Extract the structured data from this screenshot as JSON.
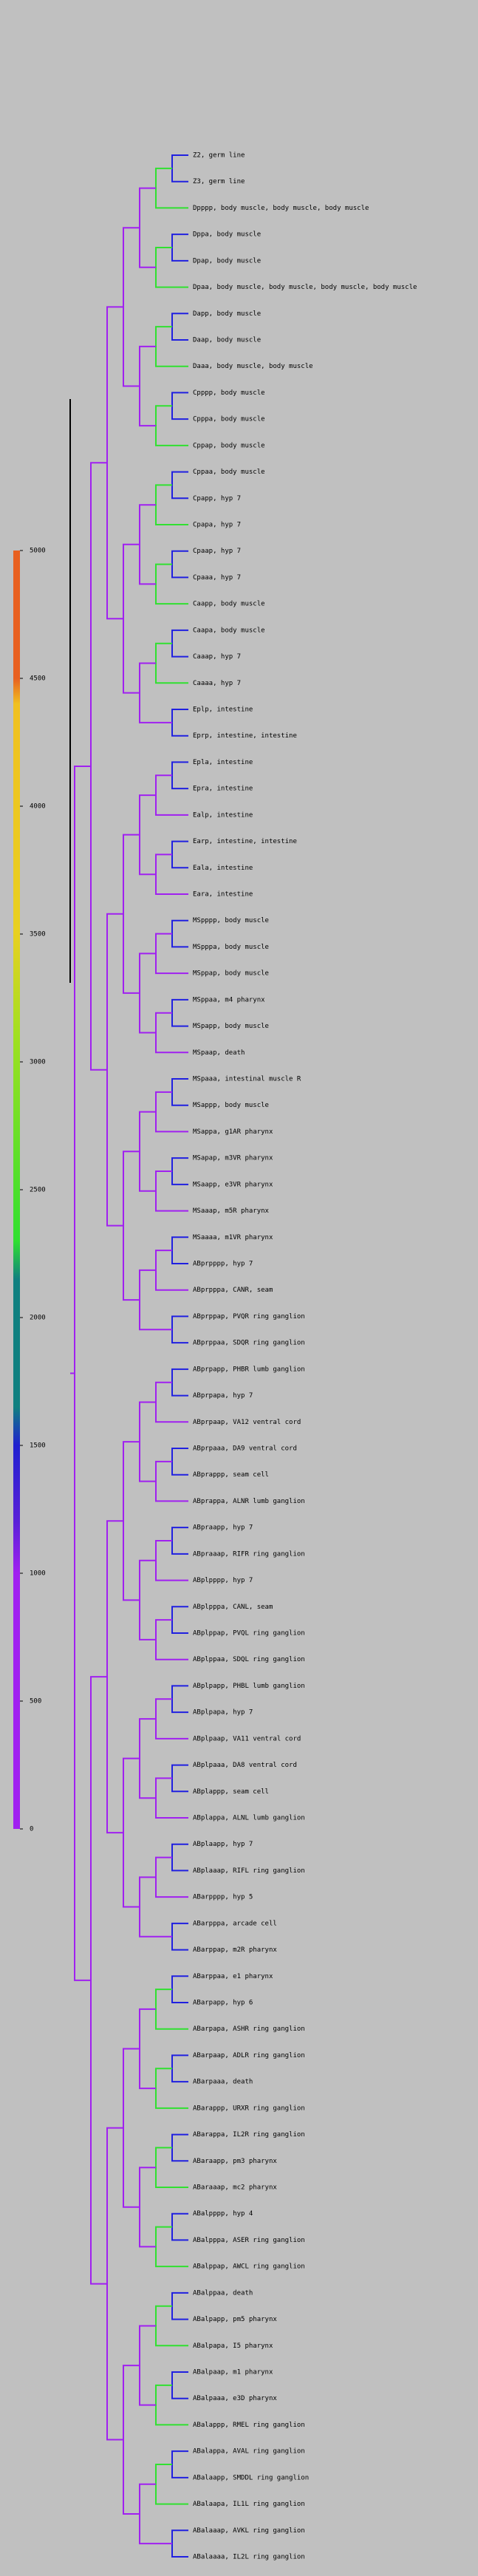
{
  "scale": {
    "ticks": [
      0,
      500,
      1000,
      1500,
      2000,
      2500,
      3000,
      3500,
      4000,
      4500,
      5000
    ]
  },
  "leaves": [
    "Z2, germ line",
    "Z3, germ line",
    "Dpppp, body muscle, body muscle, body muscle",
    "Dppa, body muscle",
    "Dpap, body muscle",
    "Dpaa, body muscle, body muscle, body muscle, body muscle",
    "Dapp, body muscle",
    "Daap, body muscle",
    "Daaa, body muscle, body muscle",
    "Cpppp, body muscle",
    "Cpppa, body muscle",
    "Cppap, body muscle",
    "Cppaa, body muscle",
    "Cpapp, hyp 7",
    "Cpapa, hyp 7",
    "Cpaap, hyp 7",
    "Cpaaa, hyp 7",
    "Caapp, body muscle",
    "Caapa, body muscle",
    "Caaap, hyp 7",
    "Caaaa, hyp 7",
    "Eplp, intestine",
    "Eprp, intestine, intestine",
    "Epla, intestine",
    "Epra, intestine",
    "Ealp, intestine",
    "Earp, intestine, intestine",
    "Eala, intestine",
    "Eara, intestine",
    "MSpppp, body muscle",
    "MSpppa, body muscle",
    "MSppap, body muscle",
    "MSppaa, m4 pharynx",
    "MSpapp, body muscle",
    "MSpaap, death",
    "MSpaaa, intestinal muscle R",
    "MSappp, body muscle",
    "MSappa, g1AR pharynx",
    "MSapap, m3VR pharynx",
    "MSaapp, e3VR pharynx",
    "MSaaap, m5R pharynx",
    "MSaaaa, m1VR pharynx",
    "ABprpppp, hyp 7",
    "ABprpppa, CANR, seam",
    "ABprppap, PVQR ring ganglion",
    "ABprppaa, SDQR ring ganglion",
    "ABprpapp, PHBR lumb ganglion",
    "ABprpapa, hyp 7",
    "ABprpaap, VA12 ventral cord",
    "ABprpaaa, DA9 ventral cord",
    "ABprappp, seam cell",
    "ABprappa, ALNR lumb ganglion",
    "ABpraapp, hyp 7",
    "ABpraaap, RIFR ring ganglion",
    "ABplpppp, hyp 7",
    "ABplpppa, CANL, seam",
    "ABplppap, PVQL ring ganglion",
    "ABplppaa, SDQL ring ganglion",
    "ABplpapp, PHBL lumb ganglion",
    "ABplpapa, hyp 7",
    "ABplpaap, VA11 ventral cord",
    "ABplpaaa, DA8 ventral cord",
    "ABplappp, seam cell",
    "ABplappa, ALNL lumb ganglion",
    "ABplaapp, hyp 7",
    "ABplaaap, RIFL ring ganglion",
    "ABarpppp, hyp 5",
    "ABarpppa, arcade cell",
    "ABarppap, m2R pharynx",
    "ABarppaa, e1 pharynx",
    "ABarpapp, hyp 6",
    "ABarpapa, ASHR ring ganglion",
    "ABarpaap, ADLR ring ganglion",
    "ABarpaaa, death",
    "ABarappp, URXR ring ganglion",
    "ABarappa, IL2R ring ganglion",
    "ABaraapp, pm3 pharynx",
    "ABaraaap, mc2 pharynx",
    "ABalpppp, hyp 4",
    "ABalpppa, ASER ring ganglion",
    "ABalppap, AWCL ring ganglion",
    "ABalppaa, death",
    "ABalpapp, pm5 pharynx",
    "ABalpapa, I5 pharynx",
    "ABalpaap, m1 pharynx",
    "ABalpaaa, e3D pharynx",
    "ABalappp, RMEL ring ganglion",
    "ABalappa, AVAL ring ganglion",
    "ABalaapp, SMDDL ring ganglion",
    "ABalaapa, IL1L ring ganglion",
    "ABalaaap, AVKL ring ganglion",
    "ABalaaaa, IL2L ring ganglion"
  ]
}
